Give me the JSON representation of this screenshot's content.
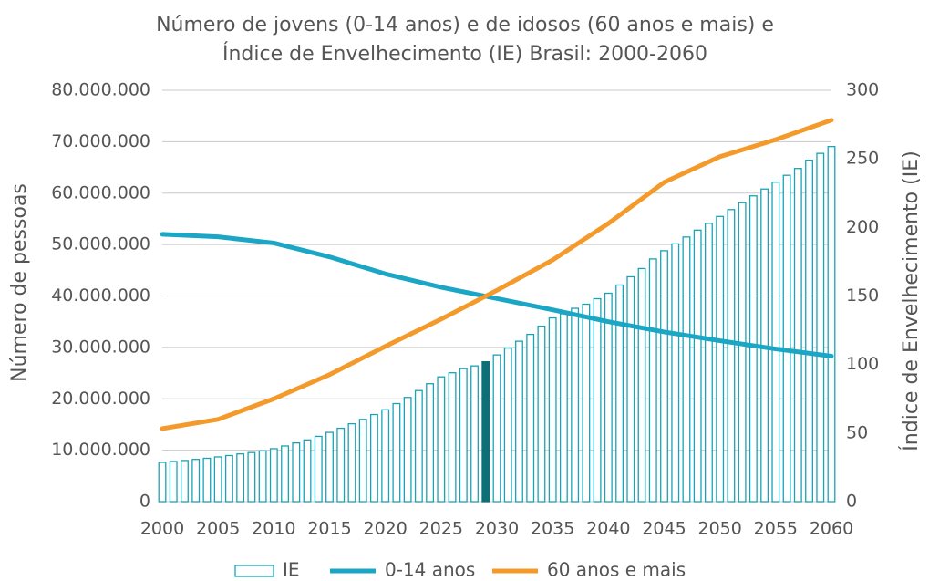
{
  "chart_data": {
    "type": "bar_line",
    "title": [
      "Número de jovens (0-14 anos) e de idosos (60 anos e mais) e",
      "Índice de Envelhecimento (IE) Brasil: 2000-2060"
    ],
    "ylabel": "Número de pessoas",
    "y2label": "Índice de Envelhecimento (IE)",
    "xlim": [
      2000,
      2060
    ],
    "xticks": [
      2000,
      2005,
      2010,
      2015,
      2020,
      2025,
      2030,
      2035,
      2040,
      2045,
      2050,
      2055,
      2060
    ],
    "ylim": [
      0,
      80000000
    ],
    "yticks": [
      0,
      {
        "value": 10000000,
        "label": "10.000.000"
      },
      {
        "value": 20000000,
        "label": "20.000.000"
      },
      {
        "value": 30000000,
        "label": "30.000.000"
      },
      {
        "value": 40000000,
        "label": "40.000.000"
      },
      {
        "value": 50000000,
        "label": "50.000.000"
      },
      {
        "value": 60000000,
        "label": "60.000.000"
      },
      {
        "value": 70000000,
        "label": "70.000.000"
      },
      {
        "value": 80000000,
        "label": "80.000.000"
      }
    ],
    "y2lim": [
      0,
      300
    ],
    "y2ticks": [
      0,
      50,
      100,
      150,
      200,
      250,
      300
    ],
    "grid": true,
    "bars": {
      "name": "IE",
      "color": "#1aa3b5",
      "axis": "y2",
      "highlight_x": 2029,
      "highlight_color": "#0d6f78",
      "x": [
        2000,
        2001,
        2002,
        2003,
        2004,
        2005,
        2006,
        2007,
        2008,
        2009,
        2010,
        2011,
        2012,
        2013,
        2014,
        2015,
        2016,
        2017,
        2018,
        2019,
        2020,
        2021,
        2022,
        2023,
        2024,
        2025,
        2026,
        2027,
        2028,
        2029,
        2030,
        2031,
        2032,
        2033,
        2034,
        2035,
        2036,
        2037,
        2038,
        2039,
        2040,
        2041,
        2042,
        2043,
        2044,
        2045,
        2046,
        2047,
        2048,
        2049,
        2050,
        2051,
        2052,
        2053,
        2054,
        2055,
        2056,
        2057,
        2058,
        2059,
        2060
      ],
      "values": [
        28.6,
        29.3,
        30.0,
        30.8,
        31.6,
        32.6,
        33.6,
        34.8,
        35.8,
        37.0,
        38.6,
        40.6,
        42.8,
        45.0,
        47.6,
        50.5,
        53.5,
        56.8,
        60.0,
        63.5,
        67.0,
        71.5,
        76.0,
        81.0,
        86.0,
        91.0,
        94.0,
        97.0,
        99.0,
        102,
        107,
        112,
        117,
        122,
        128,
        134,
        137,
        141,
        144,
        148,
        152,
        158,
        164,
        170,
        177,
        183,
        188,
        193,
        198,
        203,
        208,
        213,
        218,
        223,
        228,
        233,
        238,
        243,
        249,
        254,
        259
      ]
    },
    "series": [
      {
        "name": "0-14 anos",
        "color": "#1aa6c4",
        "x": [
          2000,
          2005,
          2010,
          2015,
          2020,
          2025,
          2030,
          2035,
          2040,
          2045,
          2050,
          2055,
          2060
        ],
        "values": [
          52000000,
          51500000,
          50300000,
          47600000,
          44300000,
          41700000,
          39500000,
          37300000,
          35000000,
          33000000,
          31300000,
          29700000,
          28300000
        ]
      },
      {
        "name": "60 anos e mais",
        "color": "#f39a2b",
        "x": [
          2000,
          2005,
          2010,
          2015,
          2020,
          2025,
          2030,
          2035,
          2040,
          2045,
          2050,
          2055,
          2060
        ],
        "values": [
          14200000,
          16000000,
          20000000,
          24700000,
          30200000,
          35500000,
          41100000,
          47000000,
          54100000,
          62100000,
          67100000,
          70400000,
          74200000
        ]
      }
    ]
  }
}
